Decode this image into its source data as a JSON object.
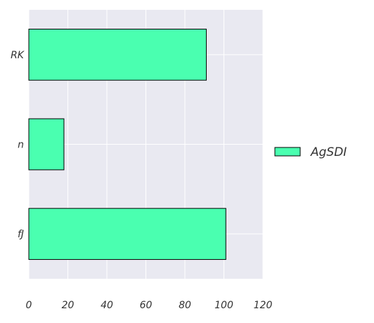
{
  "chart_data": {
    "type": "bar",
    "orientation": "horizontal",
    "categories": [
      "RK",
      "n",
      "fJ"
    ],
    "series": [
      {
        "name": "AgSDI",
        "values": [
          91,
          18,
          101
        ]
      }
    ],
    "xlim": [
      0,
      120
    ],
    "x_ticks": [
      0,
      20,
      40,
      60,
      80,
      100,
      120
    ],
    "grid": true,
    "legend_position": "right",
    "colors": {
      "bar_fill": "#4affb0",
      "bar_edge": "#000000",
      "plot_background": "#e9e9f1",
      "grid": "#ffffff"
    }
  }
}
